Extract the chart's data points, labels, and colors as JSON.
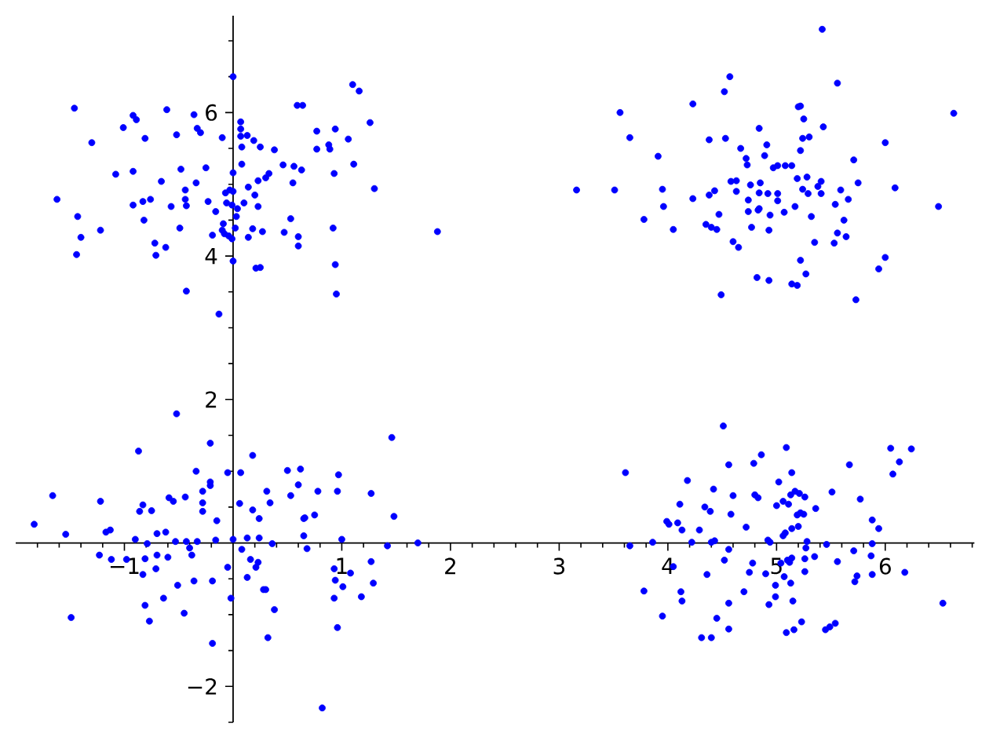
{
  "chart_data": {
    "type": "scatter",
    "color": "#0000ff",
    "marker": "circle",
    "xlim": [
      -2.0,
      6.82
    ],
    "ylim": [
      -2.5,
      7.35
    ],
    "xticks": [
      {
        "value": -1.8,
        "label": null
      },
      {
        "value": -1.6,
        "label": null
      },
      {
        "value": -1.4,
        "label": null
      },
      {
        "value": -1.2,
        "label": null
      },
      {
        "value": -1,
        "label": "−1"
      },
      {
        "value": -0.8,
        "label": null
      },
      {
        "value": -0.6,
        "label": null
      },
      {
        "value": -0.4,
        "label": null
      },
      {
        "value": -0.2,
        "label": null
      },
      {
        "value": 0.2,
        "label": null
      },
      {
        "value": 0.4,
        "label": null
      },
      {
        "value": 0.6,
        "label": null
      },
      {
        "value": 0.8,
        "label": null
      },
      1,
      {
        "value": 1.2,
        "label": null
      },
      {
        "value": 1.4,
        "label": null
      },
      {
        "value": 1.6,
        "label": null
      },
      {
        "value": 1.8,
        "label": null
      },
      2,
      {
        "value": 2.2,
        "label": null
      },
      {
        "value": 2.4,
        "label": null
      },
      {
        "value": 2.6,
        "label": null
      },
      {
        "value": 2.8,
        "label": null
      },
      3,
      {
        "value": 3.2,
        "label": null
      },
      {
        "value": 3.4,
        "label": null
      },
      {
        "value": 3.6,
        "label": null
      },
      {
        "value": 3.8,
        "label": null
      },
      4,
      {
        "value": 4.2,
        "label": null
      },
      {
        "value": 4.4,
        "label": null
      },
      {
        "value": 4.6,
        "label": null
      },
      {
        "value": 4.8,
        "label": null
      },
      5,
      {
        "value": 5.2,
        "label": null
      },
      {
        "value": 5.4,
        "label": null
      },
      {
        "value": 5.6,
        "label": null
      },
      {
        "value": 5.8,
        "label": null
      },
      6,
      {
        "value": 6.2,
        "label": null
      },
      {
        "value": 6.4,
        "label": null
      },
      {
        "value": 6.6,
        "label": null
      },
      {
        "value": 6.8,
        "label": null
      }
    ],
    "yticks": [
      {
        "value": -2.5,
        "label": null
      },
      {
        "value": -2,
        "label": "−2"
      },
      {
        "value": -1.5,
        "label": null
      },
      {
        "value": -1,
        "label": null
      },
      {
        "value": -0.5,
        "label": null
      },
      {
        "value": 0.5,
        "label": null
      },
      {
        "value": 1,
        "label": null
      },
      {
        "value": 1.5,
        "label": null
      },
      2,
      {
        "value": 2.5,
        "label": null
      },
      {
        "value": 3,
        "label": null
      },
      {
        "value": 3.5,
        "label": null
      },
      4,
      {
        "value": 4.5,
        "label": null
      },
      {
        "value": 5,
        "label": null
      },
      {
        "value": 5.5,
        "label": null
      },
      6,
      {
        "value": 6.5,
        "label": null
      },
      {
        "value": 7,
        "label": null
      }
    ],
    "x": [
      -1.46,
      0.0,
      1.1,
      1.16,
      0.59,
      0.64,
      -0.92,
      -0.89,
      -0.61,
      -0.36,
      -1.01,
      -1.3,
      -0.81,
      -0.52,
      -0.33,
      -0.3,
      -0.1,
      0.07,
      0.07,
      0.07,
      0.13,
      0.19,
      0.08,
      0.25,
      0.38,
      0.77,
      0.94,
      1.26,
      1.06,
      0.88,
      0.89,
      0.77,
      1.11,
      0.46,
      0.56,
      0.63,
      0.08,
      -0.25,
      -0.48,
      -1.08,
      -0.92,
      -0.66,
      -0.34,
      0.0,
      0.33,
      0.3,
      0.23,
      0.14,
      0.55,
      0.93,
      1.3,
      -1.62,
      -1.43,
      -1.4,
      -1.22,
      -1.44,
      -0.92,
      -0.83,
      -0.76,
      -0.82,
      -0.57,
      -0.44,
      -0.44,
      -0.43,
      -0.49,
      -0.72,
      -0.71,
      -0.62,
      -0.23,
      -0.16,
      -0.07,
      -0.03,
      0.0,
      -0.06,
      -0.01,
      0.04,
      0.03,
      0.02,
      0.1,
      -0.09,
      -0.1,
      -0.08,
      -0.04,
      -0.01,
      -0.19,
      0.2,
      0.23,
      0.18,
      0.14,
      0.27,
      0.53,
      0.47,
      0.6,
      0.6,
      0.92,
      0.0,
      0.21,
      0.25,
      0.94,
      0.95,
      -0.43,
      -0.13,
      1.88,
      5.42,
      4.57,
      4.52,
      5.56,
      4.23,
      3.56,
      3.65,
      6.63,
      5.2,
      5.22,
      5.25,
      5.43,
      5.24,
      5.3,
      5.22,
      4.84,
      4.91,
      4.89,
      4.53,
      4.38,
      4.67,
      4.72,
      4.73,
      3.91,
      6.0,
      5.71,
      5.75,
      6.09,
      6.49,
      3.16,
      3.51,
      3.95,
      3.96,
      3.78,
      4.05,
      4.23,
      4.38,
      4.43,
      4.58,
      4.63,
      4.63,
      4.76,
      4.85,
      4.84,
      4.97,
      5.01,
      5.08,
      5.14,
      5.19,
      5.28,
      5.41,
      5.38,
      5.24,
      5.29,
      5.41,
      5.59,
      4.92,
      5.01,
      5.01,
      4.74,
      4.74,
      4.83,
      4.84,
      4.94,
      5.07,
      5.17,
      5.54,
      5.66,
      5.32,
      5.62,
      5.56,
      5.64,
      5.53,
      5.35,
      4.47,
      4.35,
      4.4,
      4.45,
      4.77,
      4.93,
      4.6,
      4.65,
      5.22,
      5.27,
      4.82,
      4.93,
      5.14,
      5.19,
      4.49,
      5.73,
      6.0,
      5.94,
      -1.83,
      -1.66,
      -1.54,
      -1.49,
      -1.22,
      -1.23,
      -1.17,
      -1.13,
      -1.12,
      -0.98,
      -0.9,
      -0.87,
      -0.86,
      -0.83,
      -0.75,
      -0.79,
      -0.83,
      -0.81,
      -0.81,
      -0.77,
      -0.7,
      -0.7,
      -0.71,
      -0.64,
      -0.62,
      -0.6,
      -0.59,
      -0.55,
      -0.52,
      -0.53,
      -0.51,
      -0.45,
      -0.44,
      -0.43,
      -0.4,
      -0.38,
      -0.36,
      -0.33,
      -0.34,
      -0.28,
      -0.28,
      -0.28,
      -0.21,
      -0.21,
      -0.21,
      -0.19,
      -0.19,
      -0.16,
      -0.15,
      -0.05,
      -0.05,
      -0.02,
      0.0,
      0.07,
      0.06,
      0.08,
      0.13,
      0.13,
      0.16,
      0.21,
      0.23,
      0.18,
      0.18,
      0.24,
      0.24,
      0.28,
      0.3,
      0.31,
      0.32,
      0.34,
      0.36,
      0.38,
      0.5,
      0.53,
      0.6,
      0.62,
      0.65,
      0.66,
      0.65,
      0.68,
      0.75,
      0.78,
      0.82,
      0.93,
      0.94,
      0.93,
      0.96,
      0.96,
      0.97,
      1.0,
      1.01,
      1.08,
      1.18,
      1.27,
      1.27,
      1.29,
      1.42,
      1.46,
      1.48,
      1.7,
      4.51,
      5.09,
      4.86,
      4.56,
      4.79,
      5.14,
      4.18,
      4.42,
      4.6,
      4.8,
      4.83,
      5.02,
      5.0,
      5.06,
      5.11,
      5.13,
      5.17,
      5.21,
      5.26,
      5.19,
      5.22,
      5.25,
      5.36,
      5.51,
      5.67,
      5.77,
      6.05,
      6.13,
      6.07,
      6.24,
      5.88,
      5.94,
      5.88,
      5.87,
      5.88,
      5.71,
      5.74,
      5.72,
      6.18,
      6.53,
      5.56,
      5.46,
      5.35,
      5.26,
      5.26,
      5.28,
      5.27,
      5.14,
      5.2,
      5.08,
      5.06,
      5.1,
      5.14,
      5.12,
      5.04,
      5.07,
      5.13,
      5.15,
      4.99,
      4.99,
      4.93,
      4.9,
      4.92,
      4.94,
      4.72,
      4.78,
      4.75,
      4.7,
      5.09,
      5.16,
      5.23,
      5.45,
      5.49,
      5.54,
      4.56,
      4.52,
      4.56,
      4.56,
      4.45,
      4.31,
      4.4,
      4.36,
      4.4,
      4.43,
      4.29,
      4.58,
      4.34,
      4.39,
      4.11,
      3.99,
      4.01,
      4.09,
      4.13,
      4.22,
      4.05,
      4.12,
      4.13,
      3.95,
      3.78,
      3.86,
      3.65,
      3.61
    ],
    "values": [
      6.06,
      6.5,
      6.39,
      6.3,
      6.1,
      6.1,
      5.96,
      5.9,
      6.04,
      5.97,
      5.79,
      5.58,
      5.64,
      5.69,
      5.78,
      5.72,
      5.65,
      5.87,
      5.77,
      5.67,
      5.68,
      5.61,
      5.52,
      5.52,
      5.48,
      5.74,
      5.77,
      5.86,
      5.63,
      5.55,
      5.49,
      5.49,
      5.28,
      5.27,
      5.25,
      5.2,
      5.28,
      5.23,
      5.21,
      5.14,
      5.18,
      5.04,
      5.02,
      5.16,
      5.15,
      5.09,
      5.05,
      4.96,
      5.02,
      5.15,
      4.94,
      4.79,
      4.55,
      4.26,
      4.36,
      4.02,
      4.71,
      4.76,
      4.79,
      4.5,
      4.69,
      4.92,
      4.79,
      4.7,
      4.39,
      4.18,
      4.01,
      4.12,
      4.76,
      4.62,
      4.88,
      4.92,
      4.9,
      4.74,
      4.71,
      4.66,
      4.55,
      4.39,
      4.74,
      4.45,
      4.36,
      4.31,
      4.28,
      4.24,
      4.29,
      4.85,
      4.69,
      4.38,
      4.26,
      4.34,
      4.52,
      4.33,
      4.27,
      4.14,
      4.39,
      3.93,
      3.83,
      3.84,
      3.88,
      3.47,
      3.51,
      3.19,
      4.34,
      7.16,
      6.5,
      6.29,
      6.41,
      6.12,
      6.0,
      5.65,
      5.99,
      6.08,
      6.09,
      5.91,
      5.8,
      5.64,
      5.66,
      5.47,
      5.78,
      5.55,
      5.4,
      5.64,
      5.62,
      5.5,
      5.36,
      5.27,
      5.39,
      5.58,
      5.34,
      5.02,
      4.95,
      4.69,
      4.92,
      4.92,
      4.93,
      4.69,
      4.51,
      4.37,
      4.8,
      4.85,
      4.91,
      5.04,
      5.05,
      4.9,
      4.99,
      5.02,
      4.88,
      5.23,
      5.26,
      5.26,
      5.26,
      5.08,
      5.1,
      5.04,
      4.97,
      4.93,
      4.87,
      4.87,
      4.92,
      4.87,
      4.87,
      4.77,
      4.78,
      4.62,
      4.64,
      4.66,
      4.57,
      4.61,
      4.69,
      4.72,
      4.79,
      4.55,
      4.5,
      4.32,
      4.27,
      4.18,
      4.19,
      4.58,
      4.44,
      4.4,
      4.37,
      4.4,
      4.36,
      4.2,
      4.12,
      3.94,
      3.75,
      3.7,
      3.66,
      3.61,
      3.59,
      3.46,
      3.39,
      3.98,
      3.82,
      0.26,
      0.66,
      0.12,
      -1.04,
      0.58,
      -0.17,
      0.15,
      0.18,
      -0.23,
      -0.23,
      0.05,
      1.28,
      0.44,
      0.53,
      0.45,
      -0.01,
      -0.44,
      -0.22,
      -0.87,
      -1.09,
      0.13,
      -0.17,
      -0.36,
      -0.77,
      0.15,
      -0.2,
      0.63,
      0.58,
      1.8,
      0.02,
      -0.59,
      -0.98,
      0.64,
      0.02,
      -0.07,
      -0.17,
      -0.53,
      0.02,
      1.0,
      0.72,
      0.56,
      0.44,
      0.85,
      0.8,
      1.39,
      -0.53,
      -1.4,
      0.04,
      0.31,
      0.98,
      -0.34,
      -0.77,
      0.05,
      0.98,
      0.55,
      -0.09,
      0.07,
      -0.48,
      -0.23,
      -0.34,
      -0.27,
      1.22,
      0.46,
      0.34,
      0.07,
      -0.65,
      -0.65,
      0.72,
      -1.32,
      0.56,
      -0.01,
      -0.93,
      1.01,
      0.66,
      0.81,
      1.03,
      0.34,
      0.35,
      0.1,
      -0.08,
      0.39,
      0.72,
      -2.3,
      -0.36,
      -0.52,
      -0.77,
      -1.18,
      0.72,
      0.95,
      0.05,
      -0.61,
      -0.42,
      -0.75,
      0.69,
      -0.26,
      -0.56,
      -0.04,
      1.47,
      0.37,
      0.0,
      1.63,
      1.33,
      1.23,
      1.09,
      1.11,
      0.98,
      0.87,
      0.75,
      0.66,
      0.67,
      0.63,
      0.85,
      0.52,
      0.58,
      0.54,
      0.67,
      0.72,
      0.69,
      0.64,
      0.39,
      0.42,
      0.4,
      0.48,
      0.71,
      1.09,
      0.61,
      1.32,
      1.13,
      0.96,
      1.31,
      0.32,
      0.2,
      -0.01,
      -0.18,
      -0.44,
      -0.11,
      -0.46,
      -0.54,
      -0.41,
      -0.84,
      -0.26,
      -0.02,
      -0.19,
      -0.22,
      -0.4,
      0.02,
      -0.07,
      0.2,
      0.23,
      0.14,
      0.1,
      -0.24,
      -0.21,
      -0.27,
      -0.28,
      -0.47,
      -0.56,
      -0.81,
      -0.59,
      -0.75,
      -0.86,
      -0.43,
      0.04,
      0.01,
      0.22,
      -0.28,
      -0.41,
      -0.68,
      -1.25,
      -1.21,
      -1.1,
      -1.21,
      -1.17,
      -1.12,
      -0.09,
      -0.24,
      -0.84,
      -1.2,
      -1.05,
      -1.32,
      -1.32,
      -0.44,
      0.01,
      0.03,
      0.18,
      0.4,
      0.5,
      0.44,
      0.54,
      0.3,
      0.26,
      0.28,
      0.18,
      0.01,
      -0.33,
      -0.68,
      -0.81,
      -1.02,
      -0.67,
      0.01,
      -0.04,
      0.98
    ]
  }
}
